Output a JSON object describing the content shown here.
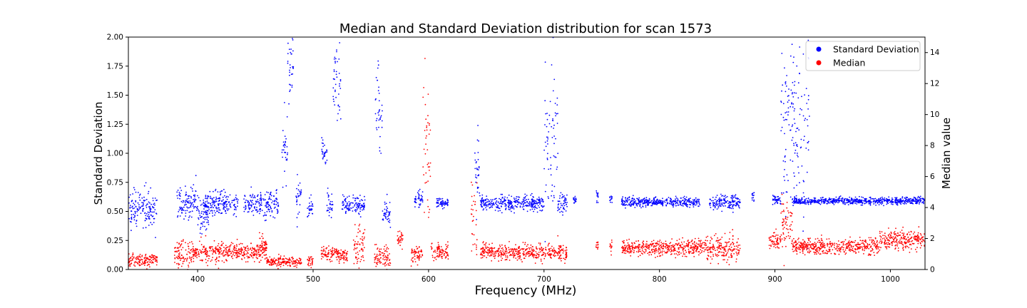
{
  "chart_data": {
    "type": "scatter",
    "title": "Median and Standard Deviation distribution for scan 1573",
    "xlabel": "Frequency (MHz)",
    "ylabel_left": "Standard Deviation",
    "ylabel_right": "Median value",
    "xlim": [
      340,
      1030
    ],
    "ylim_left": [
      0,
      2.0
    ],
    "ylim_right": [
      0,
      15
    ],
    "x_ticks": [
      "400",
      "500",
      "600",
      "700",
      "800",
      "900",
      "1000"
    ],
    "y_left_ticks": [
      "0.00",
      "0.25",
      "0.50",
      "0.75",
      "1.00",
      "1.25",
      "1.50",
      "1.75",
      "2.00"
    ],
    "y_right_ticks": [
      "0",
      "2",
      "4",
      "6",
      "8",
      "10",
      "12",
      "14"
    ],
    "grid": false,
    "legend_position": "top-right",
    "series": [
      {
        "name": "Standard Deviation",
        "axis": "left",
        "color": "#0000ff",
        "segments": [
          {
            "x0": 340,
            "x1": 365,
            "mean": 0.52,
            "spread": 0.08
          },
          {
            "x0": 382,
            "x1": 400,
            "mean": 0.57,
            "spread": 0.08
          },
          {
            "x0": 400,
            "x1": 410,
            "mean": 0.45,
            "spread": 0.07
          },
          {
            "x0": 405,
            "x1": 435,
            "mean": 0.56,
            "spread": 0.05
          },
          {
            "x0": 440,
            "x1": 470,
            "mean": 0.57,
            "spread": 0.05
          },
          {
            "x0": 473,
            "x1": 478,
            "mean": 1.05,
            "spread": 0.12
          },
          {
            "x0": 478,
            "x1": 483,
            "mean": 1.75,
            "spread": 0.15
          },
          {
            "x0": 485,
            "x1": 490,
            "mean": 0.62,
            "spread": 0.08
          },
          {
            "x0": 495,
            "x1": 500,
            "mean": 0.53,
            "spread": 0.04
          },
          {
            "x0": 507,
            "x1": 512,
            "mean": 1.0,
            "spread": 0.06
          },
          {
            "x0": 512,
            "x1": 517,
            "mean": 0.56,
            "spread": 0.05
          },
          {
            "x0": 517,
            "x1": 524,
            "mean": 1.55,
            "spread": 0.2
          },
          {
            "x0": 525,
            "x1": 545,
            "mean": 0.55,
            "spread": 0.04
          },
          {
            "x0": 554,
            "x1": 560,
            "mean": 1.3,
            "spread": 0.25
          },
          {
            "x0": 560,
            "x1": 567,
            "mean": 0.5,
            "spread": 0.06
          },
          {
            "x0": 588,
            "x1": 595,
            "mean": 0.6,
            "spread": 0.03
          },
          {
            "x0": 607,
            "x1": 617,
            "mean": 0.57,
            "spread": 0.02
          },
          {
            "x0": 640,
            "x1": 645,
            "mean": 0.85,
            "spread": 0.2
          },
          {
            "x0": 645,
            "x1": 700,
            "mean": 0.57,
            "spread": 0.03
          },
          {
            "x0": 700,
            "x1": 712,
            "mean": 1.1,
            "spread": 0.35
          },
          {
            "x0": 712,
            "x1": 720,
            "mean": 0.57,
            "spread": 0.04
          },
          {
            "x0": 725,
            "x1": 728,
            "mean": 0.6,
            "spread": 0.02
          },
          {
            "x0": 745,
            "x1": 747,
            "mean": 0.64,
            "spread": 0.03
          },
          {
            "x0": 757,
            "x1": 759,
            "mean": 0.6,
            "spread": 0.02
          },
          {
            "x0": 767,
            "x1": 835,
            "mean": 0.58,
            "spread": 0.02
          },
          {
            "x0": 843,
            "x1": 870,
            "mean": 0.58,
            "spread": 0.03
          },
          {
            "x0": 880,
            "x1": 882,
            "mean": 0.62,
            "spread": 0.02
          },
          {
            "x0": 898,
            "x1": 905,
            "mean": 0.6,
            "spread": 0.02
          },
          {
            "x0": 905,
            "x1": 930,
            "mean": 1.2,
            "spread": 0.35
          },
          {
            "x0": 915,
            "x1": 1030,
            "mean": 0.59,
            "spread": 0.015
          }
        ]
      },
      {
        "name": "Median",
        "axis": "right",
        "color": "#ff0000",
        "segments": [
          {
            "x0": 340,
            "x1": 365,
            "mean": 0.6,
            "spread": 0.2
          },
          {
            "x0": 380,
            "x1": 395,
            "mean": 1.0,
            "spread": 0.4
          },
          {
            "x0": 395,
            "x1": 460,
            "mean": 1.1,
            "spread": 0.3
          },
          {
            "x0": 452,
            "x1": 460,
            "mean": 1.6,
            "spread": 0.3
          },
          {
            "x0": 460,
            "x1": 490,
            "mean": 0.5,
            "spread": 0.15
          },
          {
            "x0": 495,
            "x1": 500,
            "mean": 0.6,
            "spread": 0.2
          },
          {
            "x0": 507,
            "x1": 530,
            "mean": 1.0,
            "spread": 0.25
          },
          {
            "x0": 535,
            "x1": 545,
            "mean": 1.5,
            "spread": 0.6
          },
          {
            "x0": 553,
            "x1": 567,
            "mean": 0.8,
            "spread": 0.3
          },
          {
            "x0": 573,
            "x1": 578,
            "mean": 2.0,
            "spread": 0.3
          },
          {
            "x0": 585,
            "x1": 595,
            "mean": 0.9,
            "spread": 0.3
          },
          {
            "x0": 595,
            "x1": 602,
            "mean": 8.0,
            "spread": 2.5
          },
          {
            "x0": 602,
            "x1": 617,
            "mean": 1.2,
            "spread": 0.25
          },
          {
            "x0": 637,
            "x1": 642,
            "mean": 3.5,
            "spread": 1.2
          },
          {
            "x0": 645,
            "x1": 720,
            "mean": 1.1,
            "spread": 0.25
          },
          {
            "x0": 745,
            "x1": 747,
            "mean": 1.5,
            "spread": 0.2
          },
          {
            "x0": 757,
            "x1": 759,
            "mean": 1.5,
            "spread": 0.2
          },
          {
            "x0": 767,
            "x1": 840,
            "mean": 1.4,
            "spread": 0.25
          },
          {
            "x0": 840,
            "x1": 870,
            "mean": 1.4,
            "spread": 0.4
          },
          {
            "x0": 895,
            "x1": 905,
            "mean": 1.8,
            "spread": 0.3
          },
          {
            "x0": 905,
            "x1": 915,
            "mean": 3.0,
            "spread": 0.8
          },
          {
            "x0": 915,
            "x1": 990,
            "mean": 1.5,
            "spread": 0.25
          },
          {
            "x0": 990,
            "x1": 1030,
            "mean": 1.9,
            "spread": 0.3
          }
        ]
      }
    ]
  }
}
